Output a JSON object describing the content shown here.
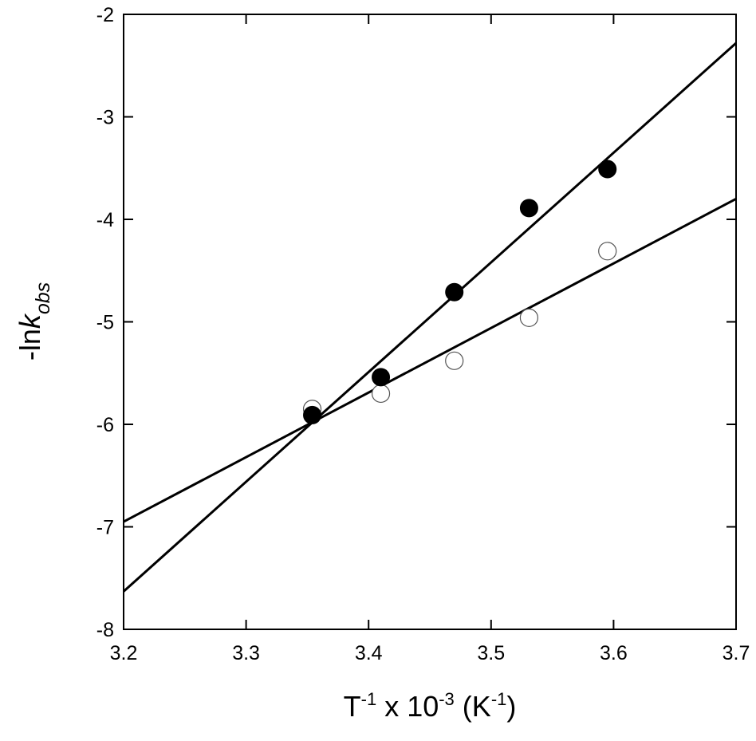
{
  "chart_data": {
    "type": "scatter",
    "title": "",
    "xlabel": {
      "base": "T",
      "sup1": "-1",
      "mid": " x 10",
      "sup2": "-3",
      "mid2": " (K",
      "sup3": "-1",
      "end": ")"
    },
    "ylabel": {
      "prefix": "-ln",
      "italic": "k",
      "sub": "obs"
    },
    "xlim": [
      3.2,
      3.7
    ],
    "ylim": [
      -8,
      -2
    ],
    "xticks": [
      "3.2",
      "3.3",
      "3.4",
      "3.5",
      "3.6",
      "3.7"
    ],
    "yticks": [
      "-2",
      "-3",
      "-4",
      "-5",
      "-6",
      "-7",
      "-8"
    ],
    "grid": false,
    "legend": "none",
    "series": [
      {
        "marker": "filled-circle",
        "color": "#000000",
        "x": [
          3.354,
          3.41,
          3.47,
          3.531,
          3.595
        ],
        "y": [
          -5.91,
          -5.54,
          -4.71,
          -3.89,
          -3.51
        ],
        "fit_line": {
          "x": [
            3.2,
            3.7
          ],
          "y": [
            -7.63,
            -2.28
          ]
        }
      },
      {
        "marker": "open-circle",
        "color": "#000000",
        "x": [
          3.354,
          3.41,
          3.47,
          3.531,
          3.595
        ],
        "y": [
          -5.85,
          -5.7,
          -5.38,
          -4.96,
          -4.31
        ],
        "fit_line": {
          "x": [
            3.2,
            3.7
          ],
          "y": [
            -6.95,
            -3.8
          ]
        }
      }
    ]
  }
}
